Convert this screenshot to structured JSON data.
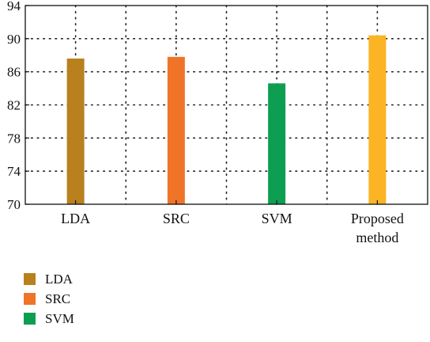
{
  "chart_data": {
    "type": "bar",
    "categories": [
      "LDA",
      "SRC",
      "SVM",
      "Proposed method"
    ],
    "category_lines": [
      [
        "LDA"
      ],
      [
        "SRC"
      ],
      [
        "SVM"
      ],
      [
        "Proposed",
        "method"
      ]
    ],
    "values": [
      87.6,
      87.8,
      84.6,
      90.4
    ],
    "colors": [
      "#B8811E",
      "#F07427",
      "#0E9E52",
      "#FBB423"
    ],
    "title": "",
    "xlabel": "",
    "ylabel": "",
    "ylim": [
      70,
      94
    ],
    "yticks": [
      70,
      74,
      78,
      82,
      86,
      90,
      94
    ],
    "grid": true,
    "legend_position": "bottom-left",
    "legend": [
      {
        "label": "LDA",
        "color": "#B8811E"
      },
      {
        "label": "SRC",
        "color": "#F07427"
      },
      {
        "label": "SVM",
        "color": "#0E9E52"
      }
    ]
  }
}
